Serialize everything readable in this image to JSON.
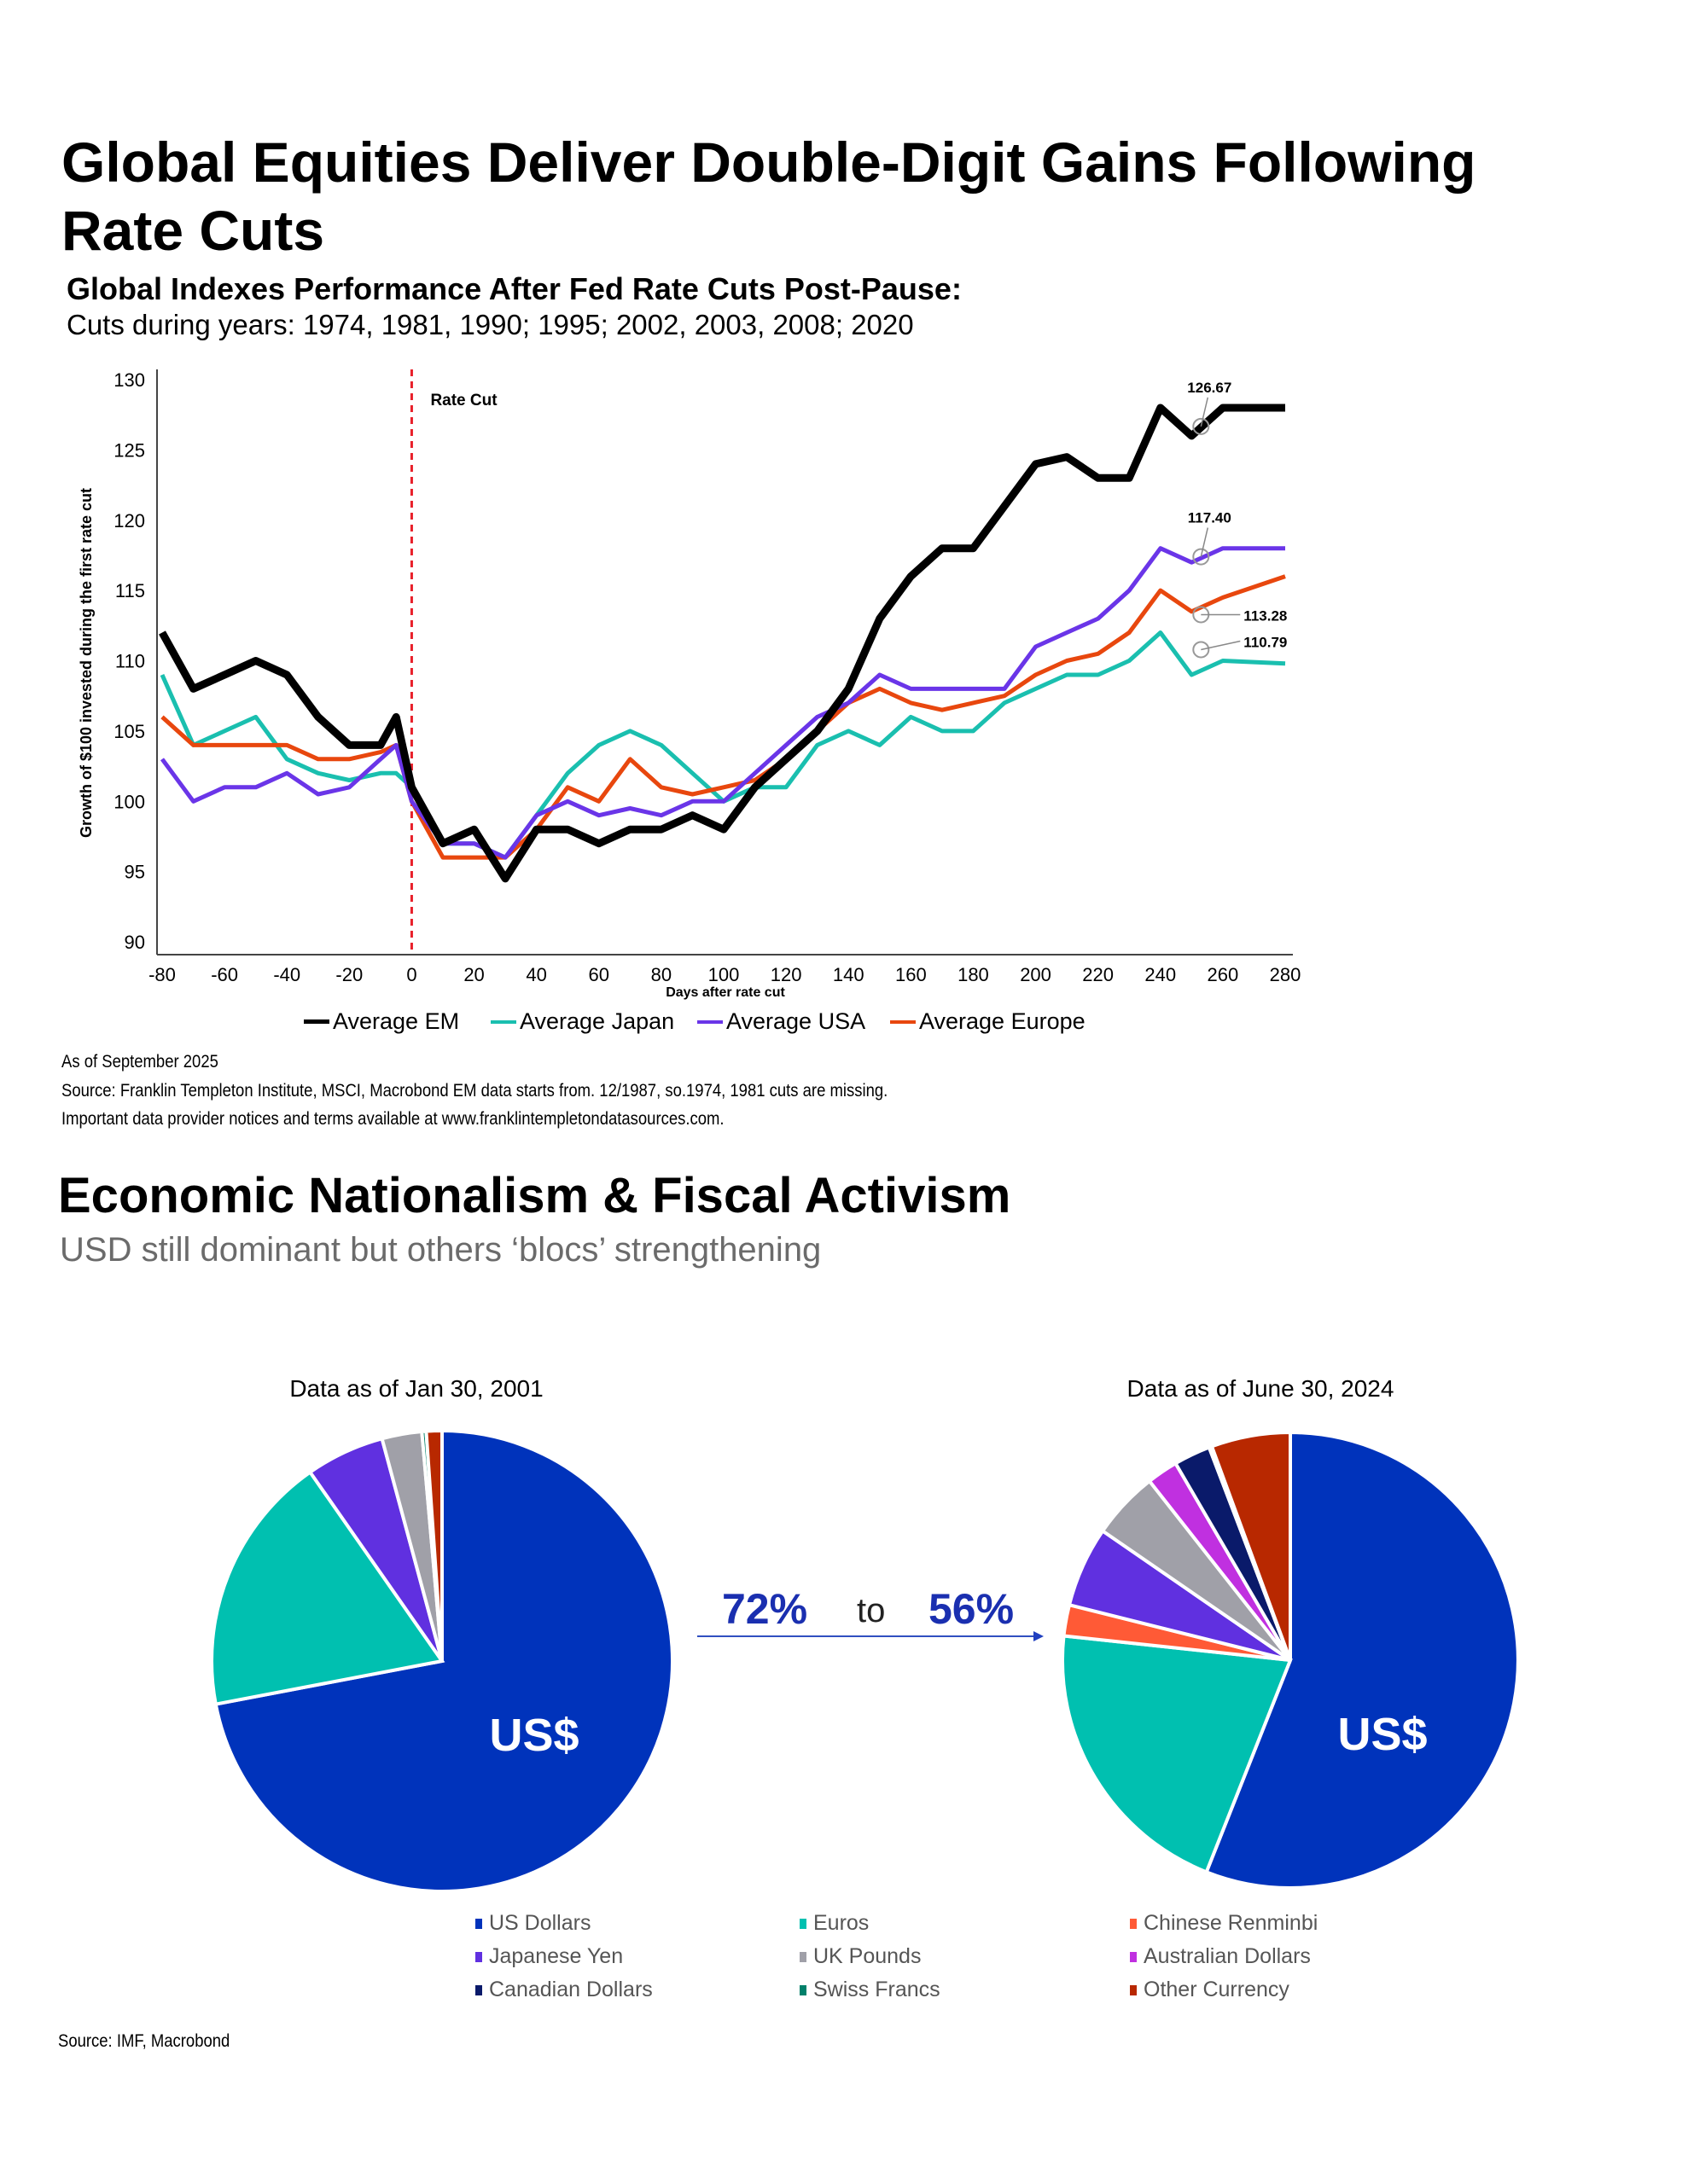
{
  "header": {
    "title": "Global Equities Deliver Double-Digit Gains Following Rate Cuts",
    "subtitle": "Global Indexes Performance After Fed Rate Cuts Post-Pause:",
    "cuts_line": "Cuts during years: 1974, 1981, 1990; 1995; 2002, 2003, 2008; 2020"
  },
  "chart_data": [
    {
      "type": "line",
      "title": "Global Indexes Performance After Fed Rate Cuts Post-Pause",
      "xlabel": "Days after rate cut",
      "ylabel": "Growth of $100 invested during the first rate cut",
      "xlim": [
        -80,
        280
      ],
      "ylim": [
        90,
        130
      ],
      "xticks": [
        -80,
        -60,
        -40,
        -20,
        0,
        20,
        40,
        60,
        80,
        100,
        120,
        140,
        160,
        180,
        200,
        220,
        240,
        260,
        280
      ],
      "yticks": [
        90,
        95,
        100,
        105,
        110,
        115,
        120,
        125,
        130
      ],
      "grid": false,
      "legend_position": "bottom",
      "vline": {
        "x": 0,
        "label": "Rate Cut",
        "color": "#E8202A"
      },
      "x": [
        -80,
        -70,
        -60,
        -50,
        -40,
        -30,
        -20,
        -10,
        -5,
        0,
        10,
        20,
        30,
        40,
        50,
        60,
        70,
        80,
        90,
        100,
        110,
        120,
        130,
        140,
        150,
        160,
        170,
        180,
        190,
        200,
        210,
        220,
        230,
        240,
        250,
        260,
        280
      ],
      "series": [
        {
          "name": "Average EM",
          "color": "#000000",
          "values": [
            112,
            108,
            109,
            110,
            109,
            106,
            104,
            104,
            106,
            101,
            97,
            98,
            94.5,
            98,
            98,
            97,
            98,
            98,
            99,
            98,
            101,
            103,
            105,
            108,
            113,
            116,
            118,
            118,
            121,
            124,
            124.5,
            123,
            123,
            128,
            126,
            128,
            128
          ]
        },
        {
          "name": "Average Japan",
          "color": "#1ABFAF",
          "values": [
            109,
            104,
            105,
            106,
            103,
            102,
            101.5,
            102,
            102,
            101,
            97,
            97,
            96,
            99,
            102,
            104,
            105,
            104,
            102,
            100,
            101,
            101,
            104,
            105,
            104,
            106,
            105,
            105,
            107,
            108,
            109,
            109,
            110,
            112,
            109,
            110,
            109.8
          ]
        },
        {
          "name": "Average USA",
          "color": "#6A35E8",
          "values": [
            103,
            100,
            101,
            101,
            102,
            100.5,
            101,
            103,
            104,
            100,
            97,
            97,
            96,
            99,
            100,
            99,
            99.5,
            99,
            100,
            100,
            102,
            104,
            106,
            107,
            109,
            108,
            108,
            108,
            108,
            111,
            112,
            113,
            115,
            118,
            117,
            118,
            118
          ]
        },
        {
          "name": "Average Europe",
          "color": "#E8470E",
          "values": [
            106,
            104,
            104,
            104,
            104,
            103,
            103,
            103.5,
            104,
            100,
            96,
            96,
            96,
            98,
            101,
            100,
            103,
            101,
            100.5,
            101,
            101.5,
            103,
            105,
            107,
            108,
            107,
            106.5,
            107,
            107.5,
            109,
            110,
            110.5,
            112,
            115,
            113.5,
            114.5,
            116
          ]
        }
      ],
      "annotations": [
        {
          "series": "Average EM",
          "x": 253,
          "y": 126.67,
          "label": "126.67"
        },
        {
          "series": "Average USA",
          "x": 253,
          "y": 117.4,
          "label": "117.40"
        },
        {
          "series": "Average Europe",
          "x": 253,
          "y": 113.28,
          "label": "113.28"
        },
        {
          "series": "Average Japan",
          "x": 253,
          "y": 110.79,
          "label": "110.79"
        }
      ]
    },
    {
      "type": "pie",
      "title": "Data as of Jan 30, 2001",
      "center_label": "US$",
      "categories": [
        "US Dollars",
        "Euros",
        "Chinese Renminbi",
        "Japanese Yen",
        "UK Pounds",
        "Australian Dollars",
        "Canadian Dollars",
        "Swiss Francs",
        "Other Currency"
      ],
      "values": [
        72,
        18.3,
        0,
        5.5,
        2.8,
        0,
        0,
        0.3,
        1.1
      ]
    },
    {
      "type": "pie",
      "title": "Data as of June 30, 2024",
      "center_label": "US$",
      "categories": [
        "US Dollars",
        "Euros",
        "Chinese Renminbi",
        "Japanese Yen",
        "UK Pounds",
        "Australian Dollars",
        "Canadian Dollars",
        "Swiss Francs",
        "Other Currency"
      ],
      "values": [
        56,
        20.7,
        2.2,
        5.7,
        4.8,
        2.2,
        2.6,
        0.2,
        5.6
      ]
    }
  ],
  "chart_notes": {
    "as_of": "As of September 2025",
    "source": "Source: Franklin Templeton Institute, MSCI, Macrobond EM data starts from. 12/1987, so.1974, 1981 cuts are missing.",
    "notice": "Important data provider notices and terms available at www.franklintempletondatasources.com."
  },
  "section2": {
    "title": "Economic Nationalism & Fiscal Activism",
    "subtitle": "USD still dominant but others ‘blocs’ strengthening",
    "from_pct": "72%",
    "to_word": "to",
    "to_pct": "56%",
    "source": "Source: IMF, Macrobond"
  },
  "pie_legend": [
    {
      "label": "US Dollars",
      "color": "#0033BB"
    },
    {
      "label": "Euros",
      "color": "#00C0B0"
    },
    {
      "label": "Chinese Renminbi",
      "color": "#FF5A36"
    },
    {
      "label": "Japanese Yen",
      "color": "#6030E0"
    },
    {
      "label": "UK Pounds",
      "color": "#A0A0A8"
    },
    {
      "label": "Australian Dollars",
      "color": "#C030E0"
    },
    {
      "label": "Canadian Dollars",
      "color": "#0A1A6A"
    },
    {
      "label": "Swiss Francs",
      "color": "#00806A"
    },
    {
      "label": "Other Currency",
      "color": "#B82800"
    }
  ]
}
